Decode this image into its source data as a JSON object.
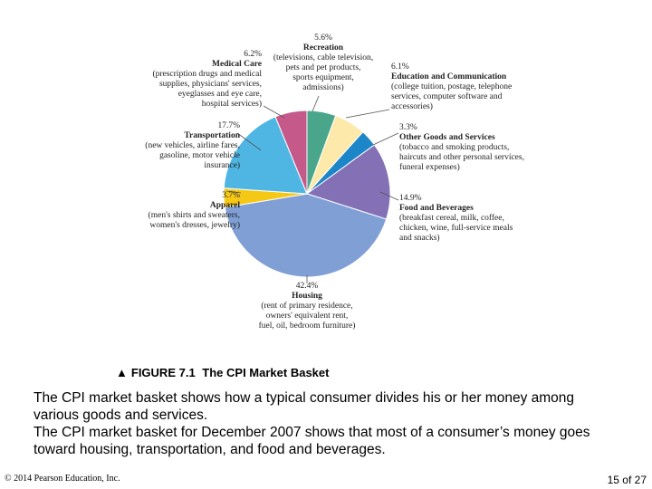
{
  "chart_data": {
    "type": "pie",
    "categories": [
      "Recreation",
      "Education and Communication",
      "Other Goods and Services",
      "Food and Beverages",
      "Housing",
      "Apparel",
      "Transportation",
      "Medical Care"
    ],
    "values": [
      5.6,
      6.1,
      3.3,
      14.9,
      42.4,
      3.7,
      17.7,
      6.2
    ],
    "value_labels": [
      "5.6%",
      "6.1%",
      "3.3%",
      "14.9%",
      "42.4%",
      "3.7%",
      "17.7%",
      "6.2%"
    ],
    "colors": [
      "#4aa68a",
      "#fde9a9",
      "#1c86c8",
      "#8470b5",
      "#7f9fd5",
      "#f6c816",
      "#4fb6e4",
      "#c55a8a"
    ],
    "descriptions": [
      [
        "(televisions, cable television,",
        "pets and pet products,",
        "sports equipment,",
        "admissions)"
      ],
      [
        "(college tuition, postage, telephone",
        "services, computer software and",
        "accessories)"
      ],
      [
        "(tobacco and smoking products,",
        "haircuts and other personal services,",
        "funeral expenses)"
      ],
      [
        "(breakfast cereal, milk, coffee,",
        "chicken, wine, full-service meals",
        "and snacks)"
      ],
      [
        "(rent of primary residence,",
        "owners' equivalent rent,",
        "fuel, oil, bedroom furniture)"
      ],
      [
        "(men's shirts and sweaters,",
        "women's dresses, jewelry)"
      ],
      [
        "(new vehicles, airline fares,",
        "gasoline, motor vehicle",
        "insurance)"
      ],
      [
        "(prescription drugs and medical",
        "supplies, physicians' services,",
        "eyeglasses and eye care,",
        "hospital services)"
      ]
    ]
  },
  "caption": {
    "marker": "▲",
    "label": "FIGURE 7.1",
    "title": "The CPI Market Basket"
  },
  "body": [
    "The CPI market basket shows how a typical consumer divides his or her money among various goods and services.",
    "The CPI market basket for December 2007 shows that most of a consumer’s money goes toward housing, transportation, and food and beverages."
  ],
  "footer": {
    "copyright": "© 2014 Pearson Education, Inc.",
    "page": "15 of 27"
  }
}
